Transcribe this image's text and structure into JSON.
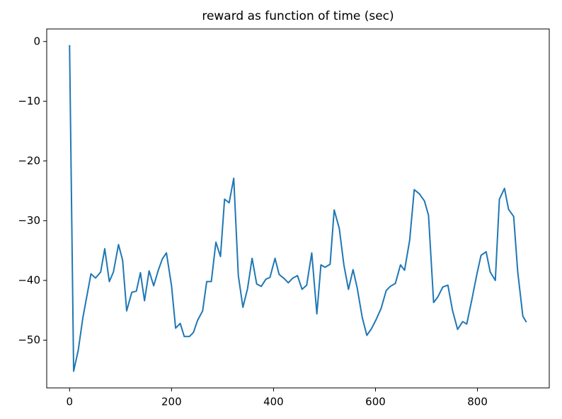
{
  "chart_data": {
    "type": "line",
    "title": "reward as function of time (sec)",
    "x": [
      0,
      8,
      17,
      26,
      42,
      51,
      61,
      69,
      78,
      86,
      96,
      104,
      112,
      122,
      131,
      139,
      147,
      156,
      165,
      174,
      182,
      190,
      200,
      208,
      217,
      225,
      235,
      243,
      251,
      261,
      269,
      278,
      287,
      296,
      304,
      313,
      322,
      331,
      340,
      349,
      358,
      367,
      376,
      385,
      393,
      403,
      411,
      421,
      429,
      438,
      447,
      456,
      465,
      475,
      485,
      493,
      501,
      511,
      519,
      529,
      538,
      547,
      556,
      564,
      574,
      583,
      592,
      601,
      611,
      621,
      629,
      639,
      649,
      657,
      667,
      676,
      686,
      696,
      704,
      714,
      722,
      732,
      742,
      751,
      761,
      771,
      779,
      789,
      799,
      807,
      817,
      825,
      835,
      843,
      853,
      861,
      871,
      879,
      889,
      896
    ],
    "series": [
      {
        "name": "reward",
        "color": "#1f77b4",
        "values": [
          -0.6,
          -55.2,
          -51.7,
          -46.3,
          -38.9,
          -39.6,
          -38.6,
          -34.7,
          -40.2,
          -38.6,
          -34,
          -36.6,
          -45.1,
          -42,
          -41.8,
          -38.7,
          -43.4,
          -38.4,
          -40.9,
          -38.3,
          -36.4,
          -35.4,
          -40.9,
          -48,
          -47.2,
          -49.4,
          -49.4,
          -48.7,
          -46.7,
          -45.1,
          -40.2,
          -40.2,
          -33.6,
          -36,
          -26.4,
          -27,
          -22.9,
          -39.2,
          -44.5,
          -41.4,
          -36.3,
          -40.6,
          -41,
          -39.8,
          -39.5,
          -36.3,
          -39,
          -39.7,
          -40.4,
          -39.6,
          -39.2,
          -41.5,
          -40.8,
          -35.4,
          -45.6,
          -37.4,
          -37.8,
          -37.3,
          -28.2,
          -31.3,
          -37.4,
          -41.5,
          -38.2,
          -41.2,
          -46.2,
          -49.2,
          -48.1,
          -46.6,
          -44.7,
          -41.7,
          -41,
          -40.5,
          -37.4,
          -38.3,
          -33.3,
          -24.8,
          -25.5,
          -26.7,
          -29.1,
          -43.7,
          -42.8,
          -41.1,
          -40.8,
          -45,
          -48.2,
          -46.9,
          -47.3,
          -43.2,
          -38.9,
          -35.8,
          -35.2,
          -38.6,
          -40,
          -26.4,
          -24.6,
          -28.1,
          -29.3,
          -38.6,
          -46,
          -47
        ]
      }
    ],
    "xlim": [
      -44.8,
      940.8
    ],
    "ylim": [
      -58.0,
      2.1
    ],
    "xticks": [
      0,
      200,
      400,
      600,
      800
    ],
    "yticks": [
      0,
      {
        "value": -10,
        "label": "−10"
      },
      {
        "value": -20,
        "label": "−20"
      },
      {
        "value": -30,
        "label": "−30"
      },
      {
        "value": -40,
        "label": "−40"
      },
      {
        "value": -50,
        "label": "−50"
      }
    ],
    "grid": false
  }
}
